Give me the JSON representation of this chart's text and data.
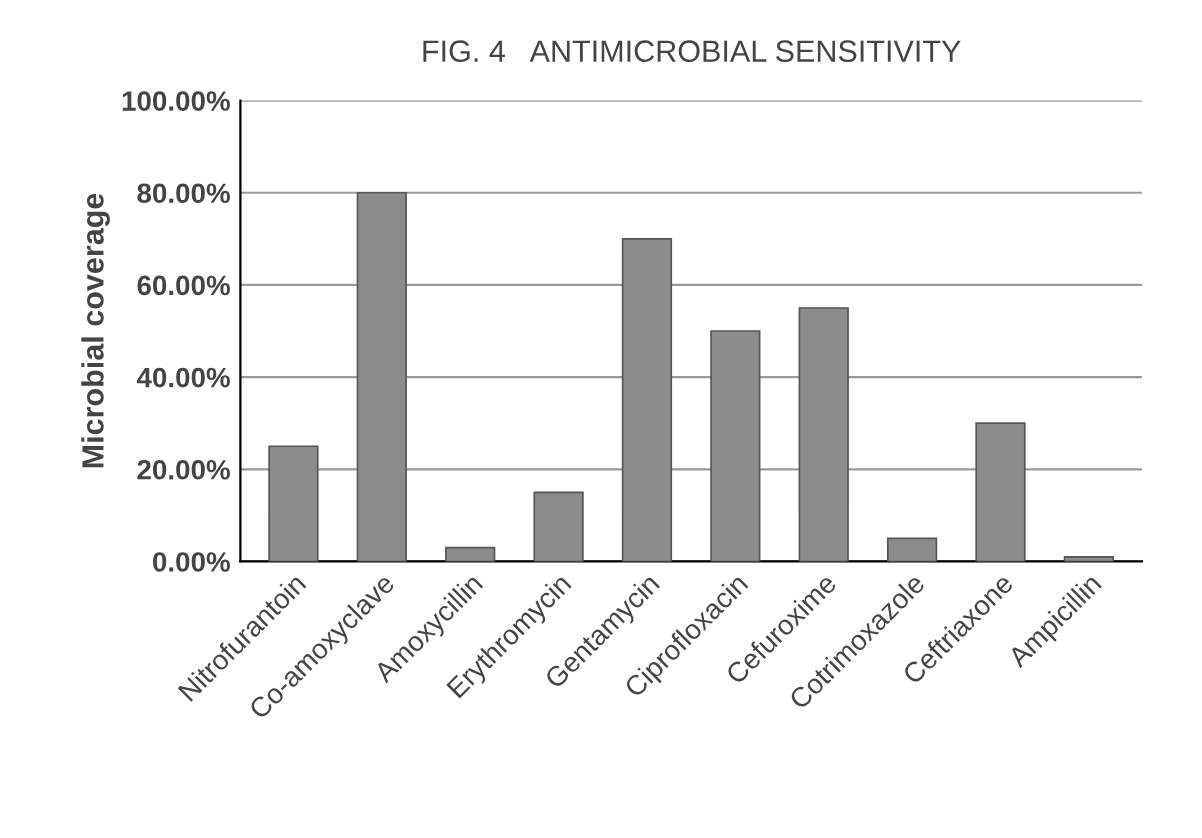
{
  "chart_data": {
    "type": "bar",
    "title": "FIG. 4   ANTIMICROBIAL SENSITIVITY",
    "ylabel": "Microbial coverage",
    "categories": [
      "Nitrofurantoin",
      "Co-amoxyclave",
      "Amoxycillin",
      "Erythromycin",
      "Gentamycin",
      "Ciprofloxacin",
      "Cefuroxime",
      "Cotrimoxazole",
      "Ceftriaxone",
      "Ampicillin"
    ],
    "values": [
      25,
      80,
      3,
      15,
      70,
      50,
      55,
      5,
      30,
      1
    ],
    "color": "#8c8c8c",
    "ylim": [
      0,
      100
    ],
    "yticks": [
      {
        "value": 0,
        "label": "0.00%"
      },
      {
        "value": 20,
        "label": "20.00%"
      },
      {
        "value": 40,
        "label": "40.00%"
      },
      {
        "value": 60,
        "label": "60.00%"
      },
      {
        "value": 80,
        "label": "80.00%"
      },
      {
        "value": 100,
        "label": "100.00%"
      }
    ],
    "grid": "y"
  }
}
